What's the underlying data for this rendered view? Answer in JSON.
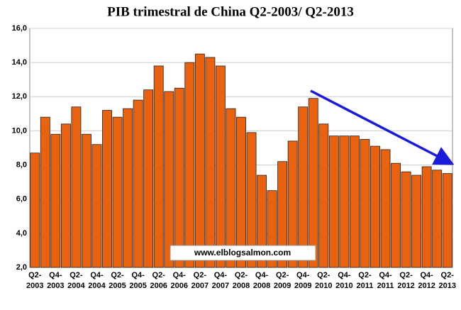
{
  "chart_data": {
    "type": "bar",
    "title": "PIB trimestral de China Q2-2003/ Q2-2013",
    "categories": [
      "Q2-\n2003",
      null,
      "Q4-\n2003",
      null,
      "Q2-\n2004",
      null,
      "Q4-\n2004",
      null,
      "Q2-\n2005",
      null,
      "Q4-\n2005",
      null,
      "Q2-\n2006",
      null,
      "Q4-\n2006",
      null,
      "Q2-\n2007",
      null,
      "Q4-\n2007",
      null,
      "Q2-\n2008",
      null,
      "Q4-\n2008",
      null,
      "Q2-\n2009",
      null,
      "Q4-\n2009",
      null,
      "Q2-\n2010",
      null,
      "Q4-\n2010",
      null,
      "Q2-\n2011",
      null,
      "Q4-\n2011",
      null,
      "Q2-\n2012",
      null,
      "Q4-\n2012",
      null,
      "Q2-\n2013"
    ],
    "values": [
      8.7,
      10.8,
      9.8,
      10.4,
      11.4,
      9.8,
      9.2,
      11.2,
      10.8,
      11.3,
      11.8,
      12.4,
      13.8,
      12.3,
      12.5,
      14.0,
      14.5,
      14.3,
      13.8,
      11.3,
      10.8,
      9.9,
      7.4,
      6.5,
      8.2,
      9.4,
      11.4,
      11.9,
      10.4,
      9.7,
      9.7,
      9.7,
      9.5,
      9.1,
      8.9,
      8.1,
      7.6,
      7.4,
      7.9,
      7.7,
      7.5
    ],
    "color": "#e8620f",
    "ylim": [
      2,
      16
    ],
    "yticks": [
      {
        "value": 2,
        "label": "2,0"
      },
      {
        "value": 4,
        "label": "4,0"
      },
      {
        "value": 6,
        "label": "6,0"
      },
      {
        "value": 8,
        "label": "8,0"
      },
      {
        "value": 10,
        "label": "10,0"
      },
      {
        "value": 12,
        "label": "12,0"
      },
      {
        "value": 14,
        "label": "14,0"
      },
      {
        "value": 16,
        "label": "16,0"
      }
    ],
    "grid": true,
    "annotation": "www.elblogsalmon.com"
  }
}
